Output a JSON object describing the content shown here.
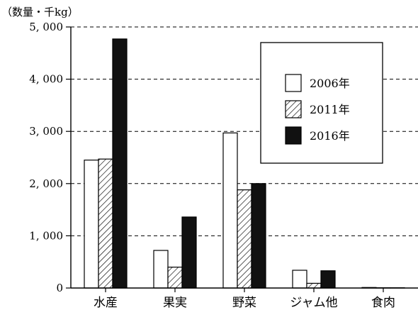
{
  "chart_data": {
    "type": "bar",
    "ylabel": "（数量・千kg）",
    "ylim": [
      0,
      5000
    ],
    "yticks": [
      0,
      1000,
      2000,
      3000,
      4000,
      5000
    ],
    "ytick_labels": [
      "0",
      "1, 000",
      "2, 000",
      "3, 000",
      "4, 000",
      "5, 000"
    ],
    "grid": "horizontal-dashed",
    "legend_position": "top-right",
    "categories": [
      "水産",
      "果実",
      "野菜",
      "ジャム他",
      "食肉"
    ],
    "series": [
      {
        "name": "2006年",
        "fill": "white",
        "values": [
          2450,
          720,
          2970,
          340,
          10
        ]
      },
      {
        "name": "2011年",
        "fill": "hatched",
        "values": [
          2470,
          400,
          1880,
          90,
          5
        ]
      },
      {
        "name": "2016年",
        "fill": "black",
        "values": [
          4770,
          1360,
          2000,
          330,
          5
        ]
      }
    ]
  }
}
